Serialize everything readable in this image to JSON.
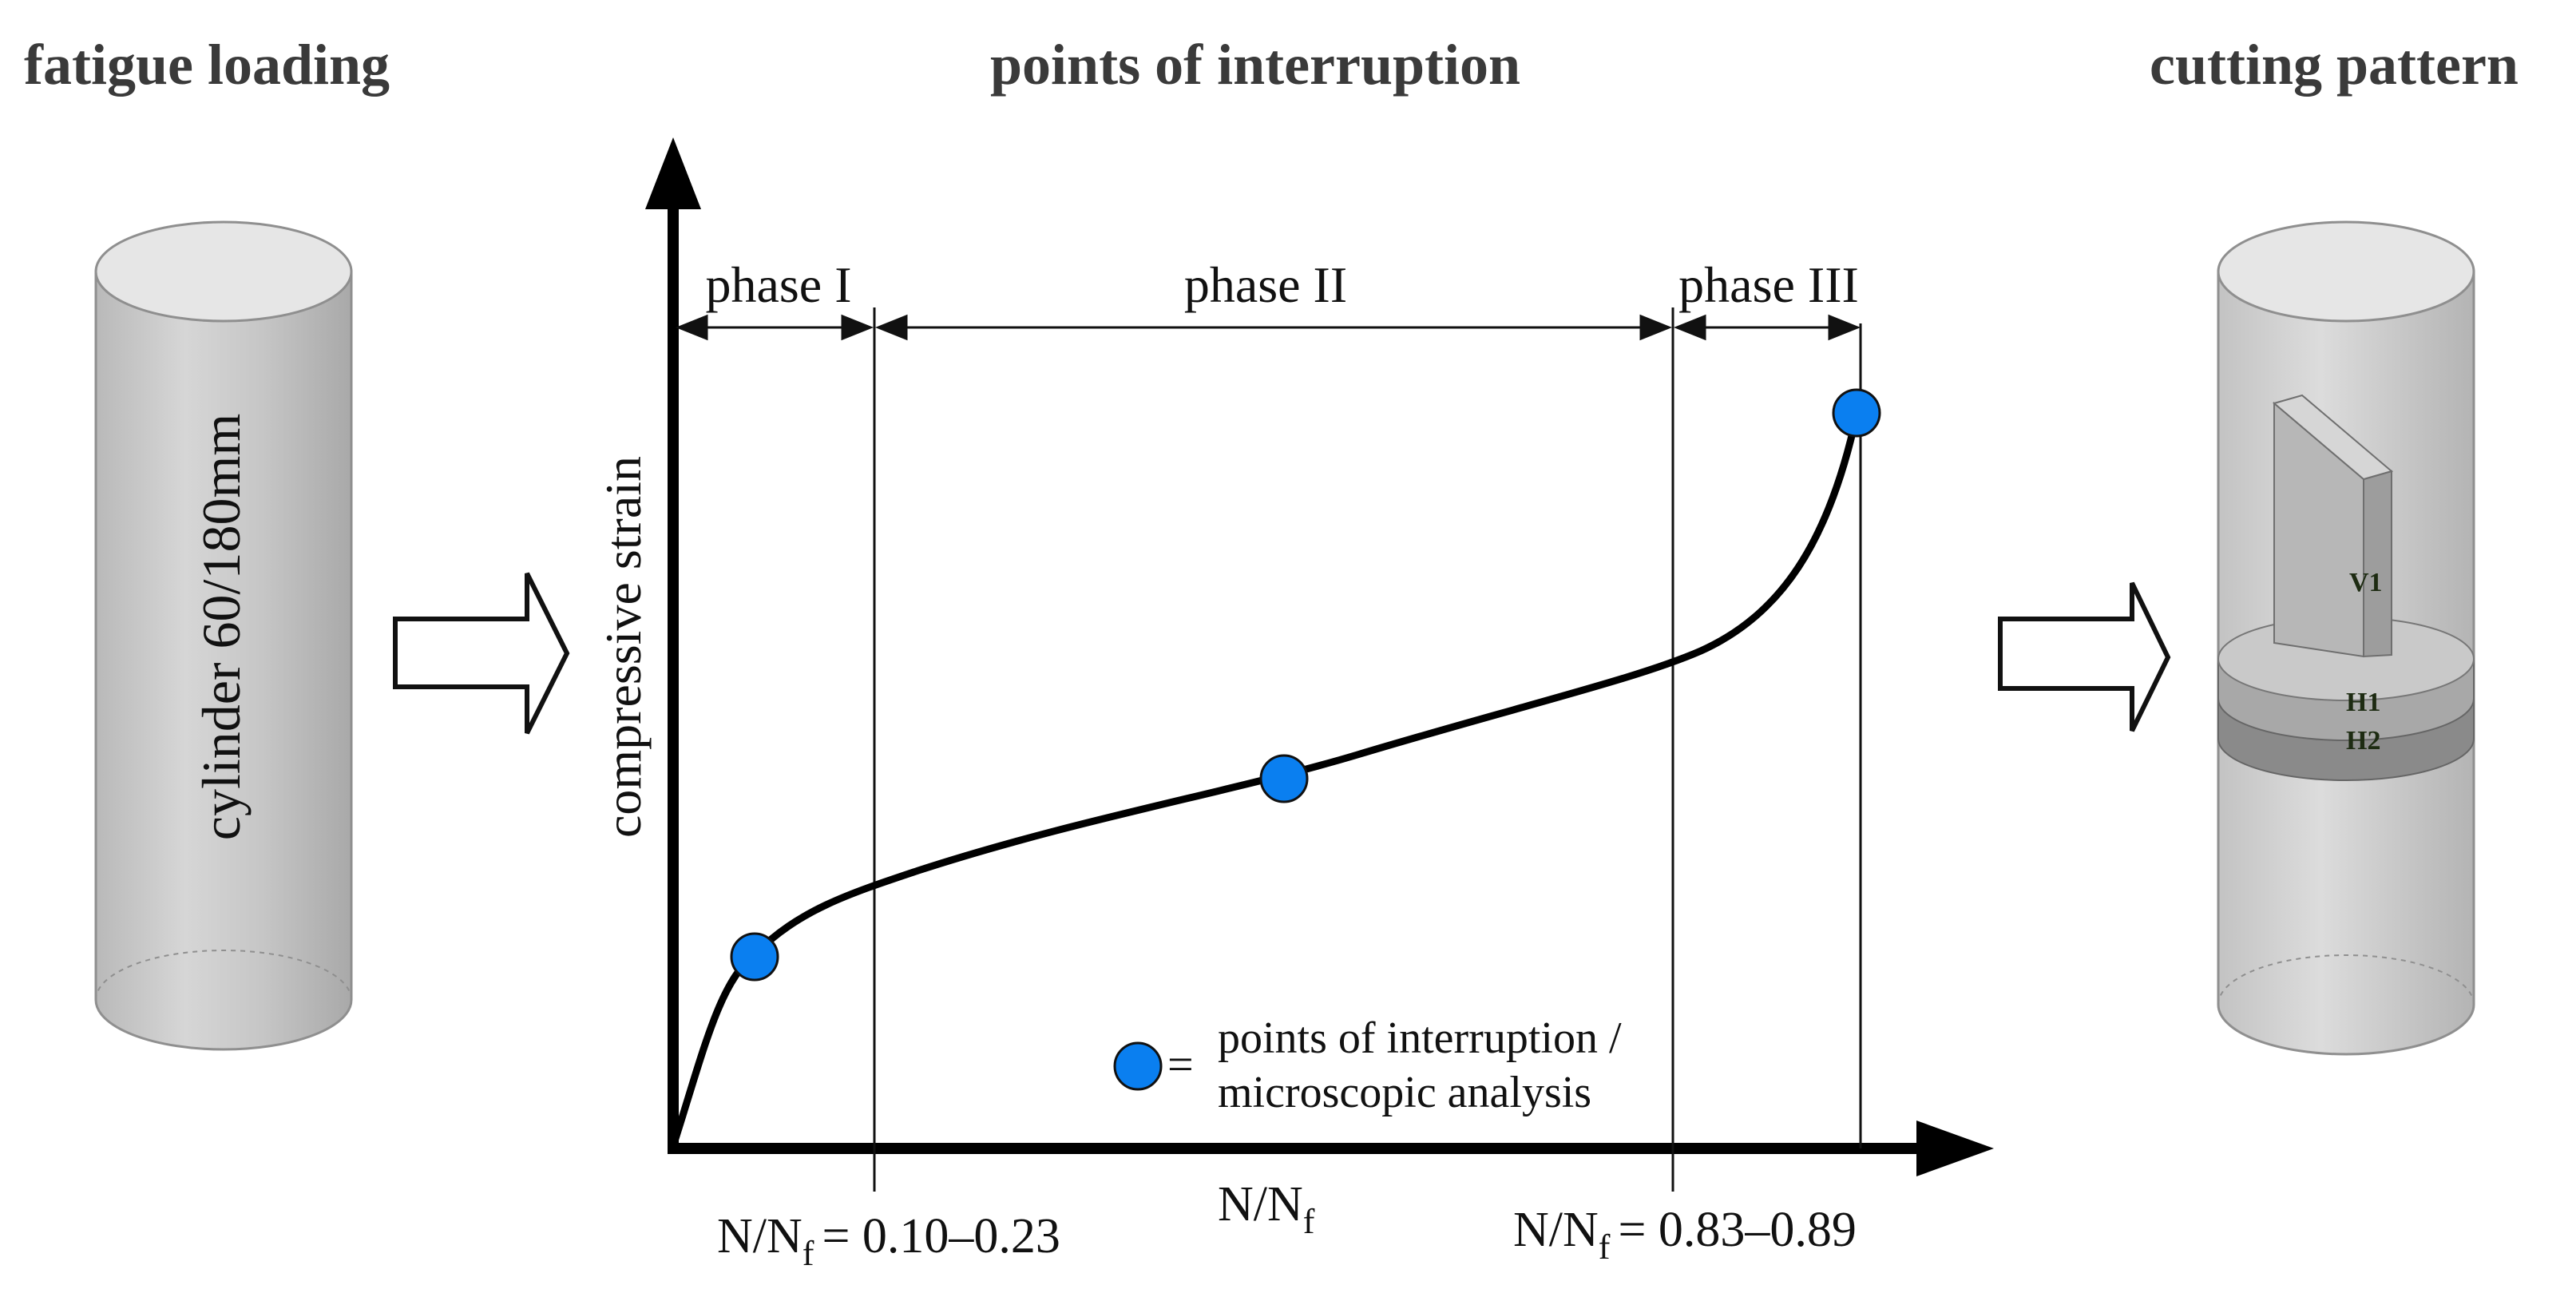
{
  "titles": {
    "left": "fatigue loading",
    "center": "points of interruption",
    "right": "cutting pattern"
  },
  "cylinder": {
    "label": "cylinder 60/180mm"
  },
  "chart": {
    "ylabel": "compressive strain",
    "xlabel_main": "N/N",
    "xlabel_sub": "f",
    "phases": [
      "phase I",
      "phase II",
      "phase III"
    ],
    "boundary_left": {
      "prefix": "N/N",
      "sub": "f",
      "value": "= 0.10–0.23"
    },
    "boundary_right": {
      "prefix": "N/N",
      "sub": "f",
      "value": "= 0.83–0.89"
    },
    "legend": {
      "equals": "=",
      "line1": "points of interruption /",
      "line2": "microscopic analysis"
    },
    "marker_color": "#0a7ff0"
  },
  "cutting": {
    "labels": [
      "V1",
      "H1",
      "H2"
    ]
  }
}
